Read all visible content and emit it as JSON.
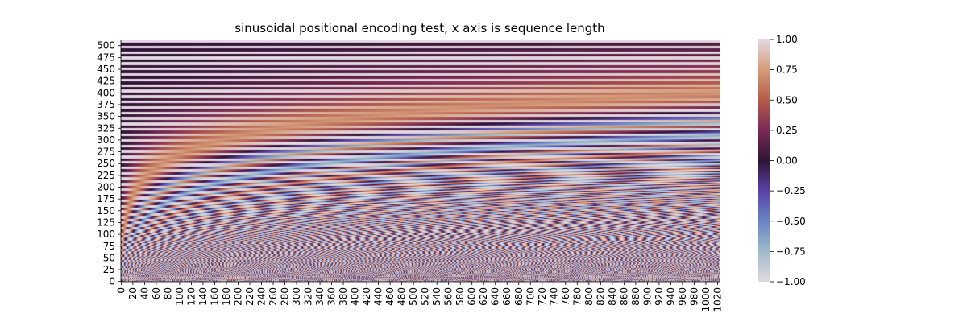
{
  "chart_data": {
    "type": "heatmap",
    "title": "sinusoidal positional encoding test, x axis is sequence length",
    "xlabel": "",
    "ylabel": "",
    "x_range": [
      0,
      1024
    ],
    "y_range": [
      0,
      512
    ],
    "x_ticks": [
      0,
      20,
      40,
      60,
      80,
      100,
      120,
      140,
      160,
      180,
      200,
      220,
      240,
      260,
      280,
      300,
      320,
      340,
      360,
      380,
      400,
      420,
      440,
      460,
      480,
      500,
      520,
      540,
      560,
      580,
      600,
      620,
      640,
      660,
      680,
      700,
      720,
      740,
      760,
      780,
      800,
      820,
      840,
      860,
      880,
      900,
      920,
      940,
      960,
      980,
      1000,
      1020
    ],
    "y_ticks": [
      0,
      25,
      50,
      75,
      100,
      125,
      150,
      175,
      200,
      225,
      250,
      275,
      300,
      325,
      350,
      375,
      400,
      425,
      450,
      475,
      500
    ],
    "y_origin": "bottom",
    "rows": 512,
    "cols": 1024,
    "value_function": "even rows: sin(pos / 10000^(i/512)), odd rows: cos(pos / 10000^((i-1)/512)); pos = column index, i = row index",
    "colormap": "twilight",
    "colormap_stops": [
      "#e2d9e2",
      "#9ebbc9",
      "#6a84c3",
      "#5942a8",
      "#2f1436",
      "#7b2955",
      "#b45c4a",
      "#d59b7a",
      "#e2d9e2"
    ],
    "colorbar": {
      "range": [
        -1.0,
        1.0
      ],
      "ticks": [
        "1.00",
        "0.75",
        "0.50",
        "0.25",
        "0.00",
        "−0.25",
        "−0.50",
        "−0.75",
        "−1.00"
      ]
    },
    "grid": false,
    "legend": "none"
  }
}
